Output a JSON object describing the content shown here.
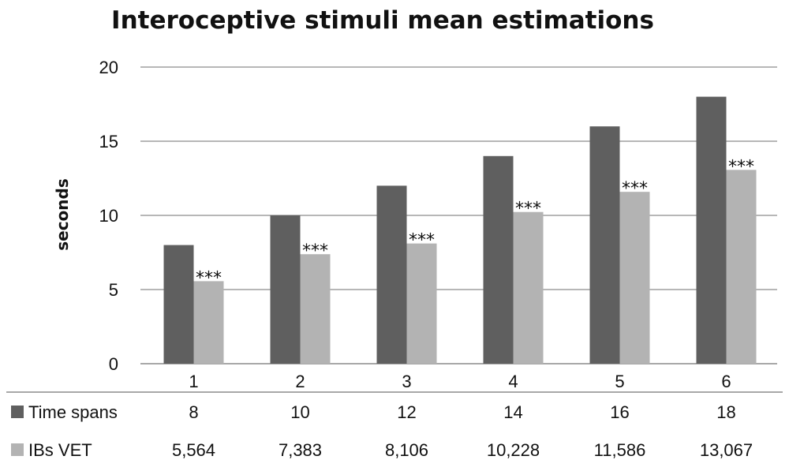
{
  "chart_data": {
    "type": "bar",
    "title": "Interoceptive stimuli mean estimations",
    "ylabel": "seconds",
    "xlabel": "",
    "ylim": [
      0,
      20
    ],
    "yticks": [
      "0",
      "5",
      "10",
      "15",
      "20"
    ],
    "grid": true,
    "categories": [
      "1",
      "2",
      "3",
      "4",
      "5",
      "6"
    ],
    "series": [
      {
        "name": "Time spans",
        "color": "#5f5f5f",
        "values": [
          8,
          10,
          12,
          14,
          16,
          18
        ],
        "labels": [
          "8",
          "10",
          "12",
          "14",
          "16",
          "18"
        ]
      },
      {
        "name": "IBs VET",
        "color": "#b3b3b3",
        "values": [
          5.564,
          7.383,
          8.106,
          10.228,
          11.586,
          13.067
        ],
        "labels": [
          "5,564",
          "7,383",
          "8,106",
          "10,228",
          "11,586",
          "13,067"
        ]
      }
    ],
    "annotations": [
      "***",
      "***",
      "***",
      "***",
      "***",
      "***"
    ],
    "legend": "data-table-rows"
  }
}
